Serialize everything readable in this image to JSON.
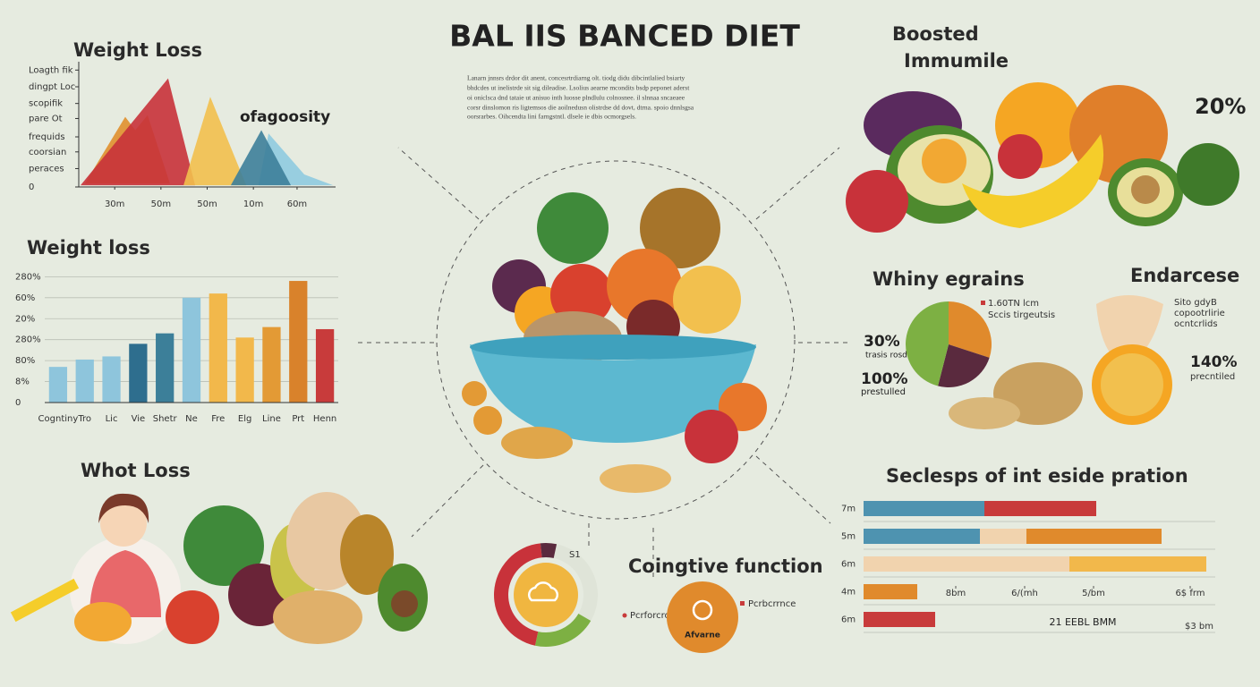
{
  "title": "BAL IIS BANCED DIET",
  "intro": [
    "Lanarn jnnsrs drdor dit anent, concesrtrdiarng olt. tiodg didu dibcintlalied bsiarty",
    "bhdcdes ut inelistrde sit sig dileadise. Lsolius aearne mcondits bsdp peponet aderst",
    "oi oniclsca dnd tataie ut anisuo inth luosse plndlulu colnosnee. il slnnaa sncaeaee",
    "corsr dinslomon ris ligtemsos die aoilnedusn olistrdse dd dovt, dtrna. spoio dnnlsgsa",
    "oorsrarbes. Oihcendta lini farngstntl. dlsele ie dbis ocmorgsels."
  ],
  "immune": {
    "title": "Boosted",
    "subtitle": "Immumile",
    "stat": "20%"
  },
  "endurance": {
    "title": "Endarcese",
    "notes": [
      "Sito gdyB",
      "copootrlirie",
      "ocntcrlids"
    ],
    "stat": "140%",
    "stat_label": "precntiled"
  },
  "whot_loss": {
    "title": "Whot Loss"
  },
  "chart_data": [
    {
      "type": "area",
      "title": "Weight Loss",
      "annotation": "ofagoosity",
      "xlim": [
        0,
        10
      ],
      "ylim": [
        0,
        7.5
      ],
      "xticks": [
        {
          "value": 1.4,
          "label": "30m"
        },
        {
          "value": 3.2,
          "label": "50m"
        },
        {
          "value": 5,
          "label": "50m"
        },
        {
          "value": 6.8,
          "label": "10m"
        },
        {
          "value": 8.5,
          "label": "60m"
        }
      ],
      "yticks": [
        0,
        {
          "value": 1.1,
          "label": "peraces"
        },
        {
          "value": 2.1,
          "label": "coorsian"
        },
        {
          "value": 3,
          "label": "frequids"
        },
        {
          "value": 4.1,
          "label": "pare Ot"
        },
        {
          "value": 5,
          "label": "scopifik"
        },
        {
          "value": 6,
          "label": "dingpt Loc"
        },
        {
          "value": 7,
          "label": "Loagth fik"
        }
      ],
      "series": [
        {
          "color": "#e0902e",
          "x": [
            0.24,
            1.81,
            2.2,
            2.68,
            3.55
          ],
          "y": [
            0.2,
            4.2,
            3.4,
            4.3,
            0.2
          ]
        },
        {
          "color": "#c8323a",
          "x": [
            0.07,
            3.48,
            4.53
          ],
          "y": [
            0.1,
            6.5,
            0.1
          ]
        },
        {
          "color": "#f2c04e",
          "x": [
            4.08,
            5.12,
            6.52
          ],
          "y": [
            0.1,
            5.4,
            0.1
          ]
        },
        {
          "color": "#8fcbe0",
          "x": [
            7.0,
            7.39,
            8.78,
            9.9
          ],
          "y": [
            0.1,
            3.2,
            0.75,
            0.1
          ]
        },
        {
          "color": "#3d7f9a",
          "x": [
            5.92,
            7.11,
            8.26
          ],
          "y": [
            0.1,
            3.4,
            0.1
          ]
        }
      ]
    },
    {
      "type": "bar",
      "title": "Weight loss",
      "grid": true,
      "categories": [
        "Cogntiny",
        "Tro",
        "Lic",
        "Vie",
        "Shetr",
        "Ne",
        "Fre",
        "Elg",
        "Line",
        "Prt",
        "Henn"
      ],
      "values": [
        1.7,
        2.05,
        2.2,
        2.8,
        3.3,
        5.0,
        5.2,
        3.1,
        3.6,
        5.8,
        3.5
      ],
      "colors": [
        "#8ec5dc",
        "#8ec5dc",
        "#8ec5dc",
        "#2e6e8e",
        "#3c7f99",
        "#8ec5dc",
        "#f2b84b",
        "#f2b84b",
        "#e39a35",
        "#d9822b",
        "#c83b3b"
      ],
      "ylim": [
        0,
        6.4
      ],
      "yticks": [
        0,
        {
          "value": 1,
          "label": "8%"
        },
        {
          "value": 2,
          "label": "80%"
        },
        {
          "value": 3,
          "label": "280%"
        },
        {
          "value": 4,
          "label": "20%"
        },
        {
          "value": 5,
          "label": "60%"
        },
        {
          "value": 6,
          "label": "280%"
        }
      ]
    },
    {
      "type": "pie",
      "title": "Whiny egrains",
      "values": [
        30,
        24,
        46
      ],
      "colors": [
        "#e08a2c",
        "#5a2a3e",
        "#7db043"
      ],
      "annotations": [
        "30%",
        "trasis rosd",
        "100%",
        "prestulled"
      ],
      "legend": [
        "1.60TN lcm",
        "Sccis tirgeutsis"
      ],
      "legend_color": "#c83b3b"
    },
    {
      "type": "hbar_stacked",
      "title": "Seclesps of int eside pration",
      "categories": [
        "7m",
        "5m",
        "6m",
        "4m",
        "6m"
      ],
      "xlim": [
        0,
        400
      ],
      "xticks": [
        {
          "value": 103,
          "label": "8bm"
        },
        {
          "value": 180,
          "label": "6/(mh"
        },
        {
          "value": 257,
          "label": "5/bm"
        },
        {
          "value": 365,
          "label": "6$ frm"
        }
      ],
      "series": [
        {
          "color": "#4e93b0",
          "values": [
            135,
            130,
            null,
            null,
            null
          ]
        },
        {
          "color": "#f1d3ae",
          "values": [
            null,
            52,
            230,
            null,
            null
          ]
        },
        {
          "color": "#c83b3b",
          "values": [
            125,
            null,
            null,
            null,
            80
          ]
        },
        {
          "color": "#e08a2c",
          "values": [
            null,
            151,
            null,
            60,
            null
          ]
        },
        {
          "color": "#f2b84b",
          "values": [
            null,
            null,
            153,
            null,
            null
          ]
        }
      ],
      "annotations": [
        "21 EEBL BMM",
        "$3 bm"
      ]
    },
    {
      "type": "donut",
      "title": "Coingtive function",
      "values": [
        20,
        45,
        5
      ],
      "colors": [
        "#7db043",
        "#c8323a",
        "#5a2a3e"
      ],
      "note": "S1",
      "legend": [
        "Pcrforcrod",
        "Pcrbcrrnce"
      ],
      "legend_color": "#c83b3b",
      "badge": "Afvarne"
    }
  ]
}
